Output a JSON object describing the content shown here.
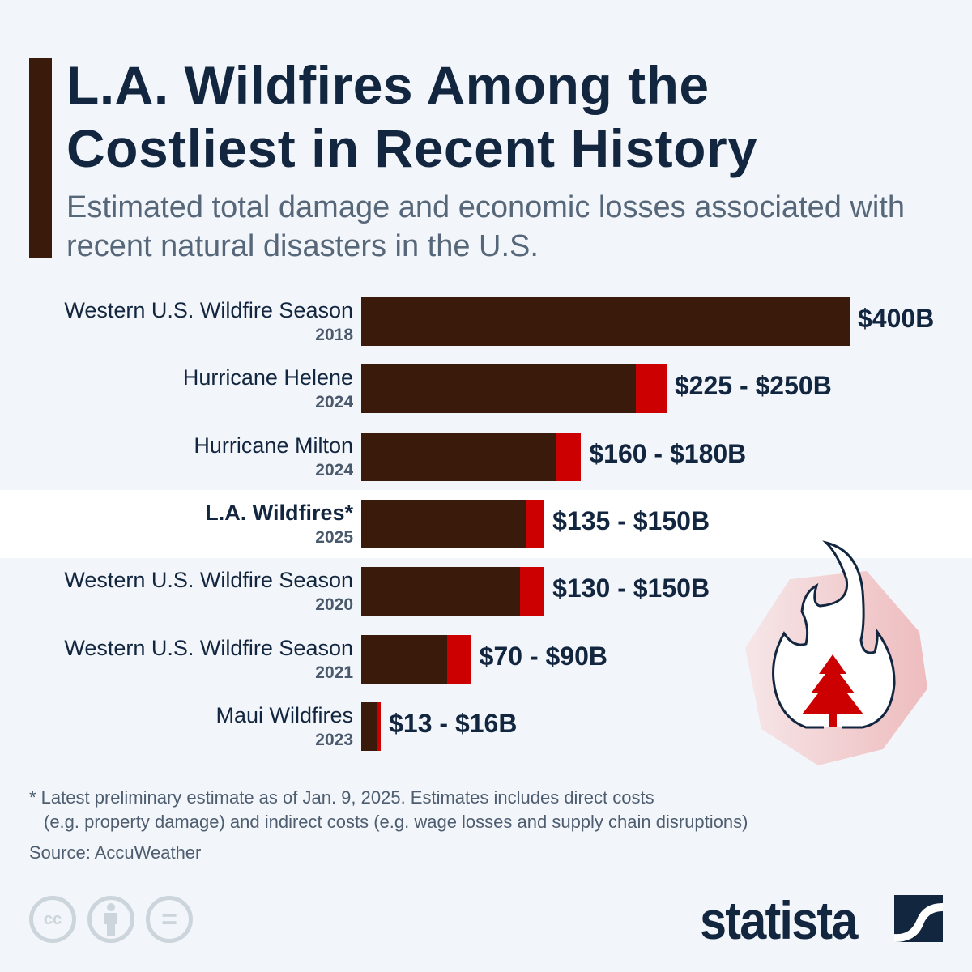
{
  "header": {
    "title_line1": "L.A. Wildfires Among the",
    "title_line2": "Costliest in Recent History",
    "subtitle": "Estimated total damage and economic losses associated with recent natural disasters in the U.S."
  },
  "chart_data": {
    "type": "bar",
    "orientation": "horizontal",
    "categories": [
      "Western U.S. Wildfire Season 2018",
      "Hurricane Helene 2024",
      "Hurricane Milton 2024",
      "L.A. Wildfires* 2025",
      "Western U.S. Wildfire Season 2020",
      "Western U.S. Wildfire Season 2021",
      "Maui Wildfires 2023"
    ],
    "rows": [
      {
        "name": "Western U.S. Wildfire Season",
        "year": "2018",
        "low": 400,
        "high": 400,
        "label": "$400B",
        "highlight": false
      },
      {
        "name": "Hurricane Helene",
        "year": "2024",
        "low": 225,
        "high": 250,
        "label": "$225 - $250B",
        "highlight": false
      },
      {
        "name": "Hurricane Milton",
        "year": "2024",
        "low": 160,
        "high": 180,
        "label": "$160 - $180B",
        "highlight": false
      },
      {
        "name": "L.A. Wildfires*",
        "year": "2025",
        "low": 135,
        "high": 150,
        "label": "$135 - $150B",
        "highlight": true
      },
      {
        "name": "Western U.S. Wildfire Season",
        "year": "2020",
        "low": 130,
        "high": 150,
        "label": "$130 - $150B",
        "highlight": false
      },
      {
        "name": "Western U.S. Wildfire Season",
        "year": "2021",
        "low": 70,
        "high": 90,
        "label": "$70 - $90B",
        "highlight": false
      },
      {
        "name": "Maui Wildfires",
        "year": "2023",
        "low": 13,
        "high": 16,
        "label": "$13 - $16B",
        "highlight": false
      }
    ],
    "unit": "billion USD",
    "xlim": [
      0,
      400
    ],
    "grid": false,
    "colors": {
      "low": "#3a1a0b",
      "range": "#cc0000"
    }
  },
  "footer": {
    "note_line1": "* Latest preliminary estimate as of Jan. 9, 2025. Estimates includes direct costs",
    "note_line2": "(e.g. property damage) and indirect costs (e.g. wage losses and supply chain disruptions)",
    "source": "Source: AccuWeather",
    "cc_label": "cc",
    "equals_label": "=",
    "brand": "statista"
  },
  "icons": [
    "fire-tree-icon",
    "cc-icon",
    "attribution-icon",
    "no-derivatives-icon",
    "statista-logo"
  ]
}
